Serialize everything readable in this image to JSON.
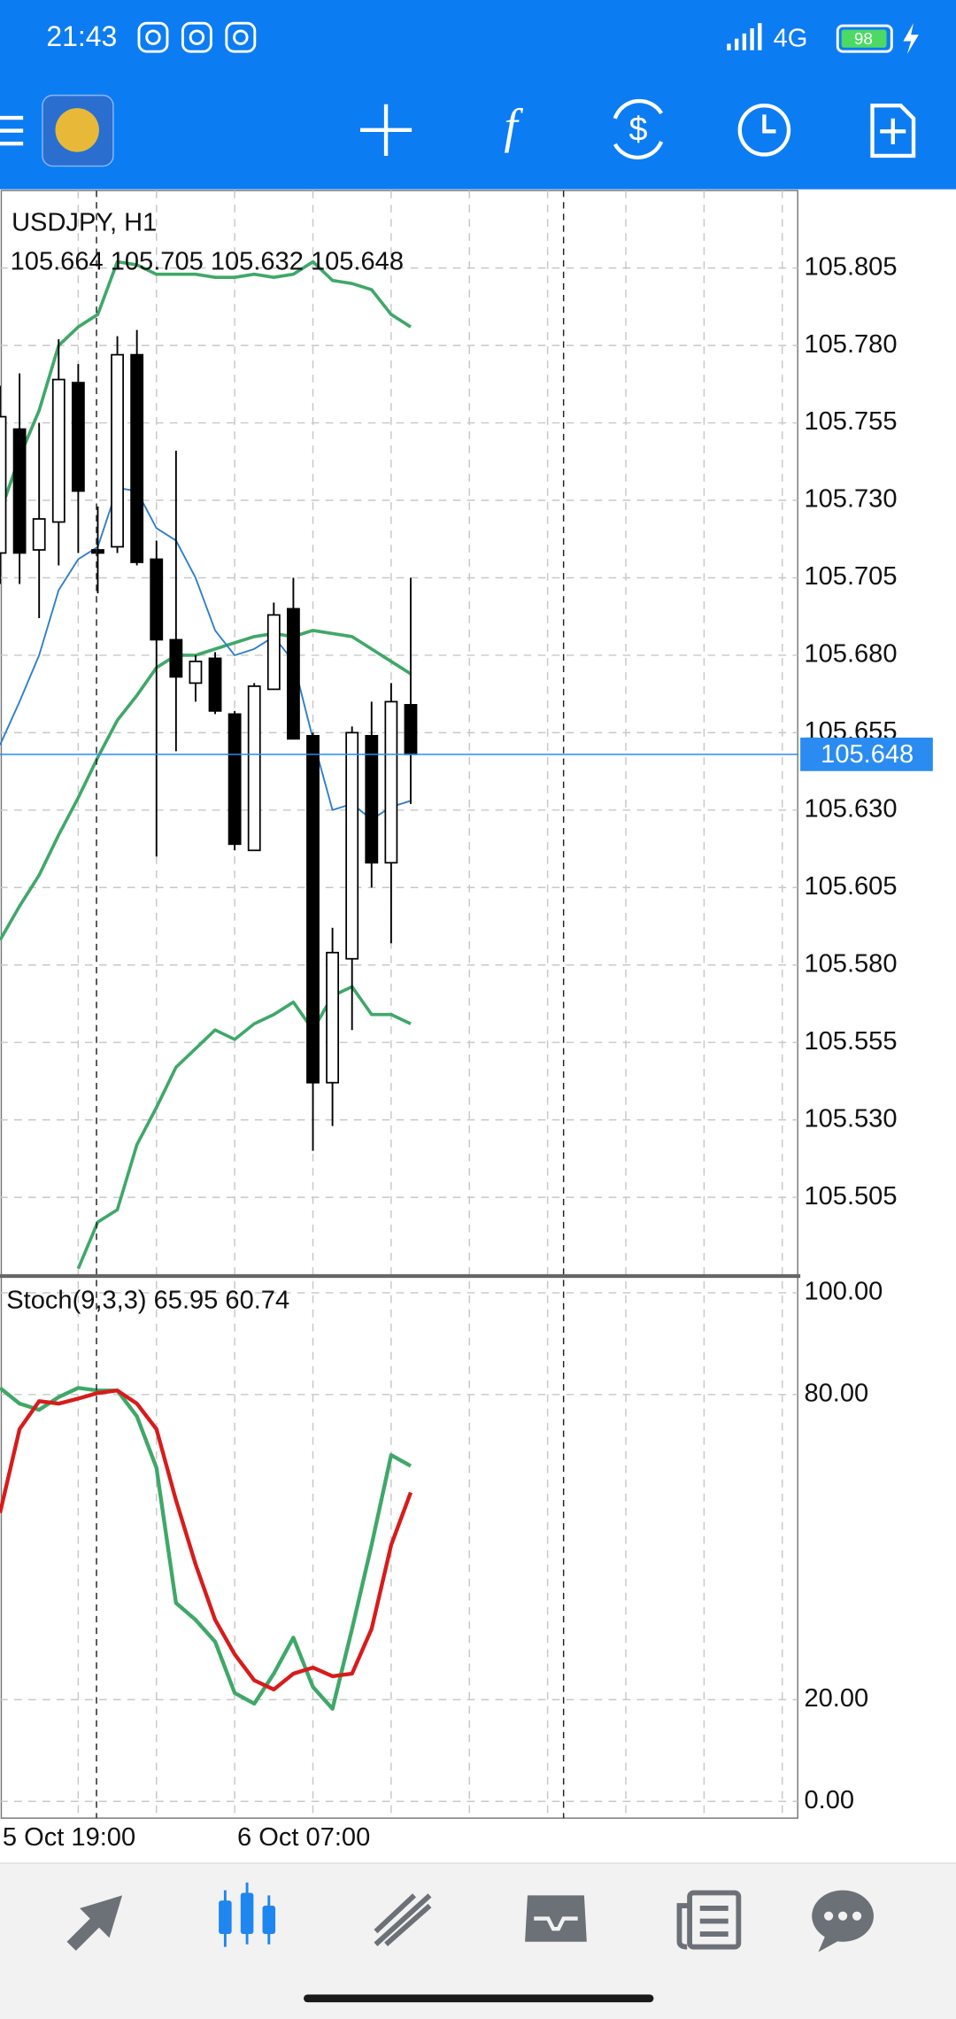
{
  "status_bar": {
    "time": "21:43",
    "network": "4G",
    "battery": "98"
  },
  "chart_data": [
    {
      "type": "candlestick",
      "title": "USDJPY, H1",
      "subtitle": "105.664 105.705 105.632 105.648",
      "categories": [
        "5 Oct 19:00",
        null,
        null,
        null,
        null,
        null,
        null,
        null,
        null,
        null,
        null,
        null,
        "6 Oct 07:00",
        null,
        null,
        null,
        null,
        null,
        null,
        null,
        null,
        null
      ],
      "open": [
        105.713,
        105.753,
        105.714,
        105.723,
        105.768,
        105.714,
        105.715,
        105.777,
        105.711,
        105.685,
        105.671,
        105.679,
        105.661,
        105.617,
        105.669,
        105.695,
        105.654,
        105.542,
        105.582,
        105.654,
        105.613,
        105.664
      ],
      "high": [
        105.767,
        105.771,
        105.755,
        105.782,
        105.774,
        105.728,
        105.783,
        105.785,
        105.717,
        105.746,
        105.68,
        105.681,
        105.662,
        105.671,
        105.697,
        105.705,
        105.655,
        105.592,
        105.657,
        105.665,
        105.671,
        105.705
      ],
      "low": [
        105.703,
        105.703,
        105.692,
        105.709,
        105.713,
        105.7,
        105.713,
        105.709,
        105.615,
        105.649,
        105.665,
        105.661,
        105.617,
        105.617,
        105.669,
        105.653,
        105.52,
        105.528,
        105.559,
        105.605,
        105.587,
        105.632
      ],
      "close": [
        105.757,
        105.713,
        105.724,
        105.769,
        105.733,
        105.713,
        105.777,
        105.71,
        105.685,
        105.673,
        105.678,
        105.662,
        105.619,
        105.67,
        105.693,
        105.653,
        105.542,
        105.584,
        105.655,
        105.613,
        105.665,
        105.648
      ],
      "up_color": "#ffffff",
      "down_color": "#000000",
      "lines": [
        {
          "color": "#3fa868",
          "values": [
            105.726,
            105.744,
            105.759,
            105.78,
            105.786,
            105.79,
            105.807,
            105.806,
            105.803,
            105.803,
            105.803,
            105.802,
            105.802,
            105.803,
            105.802,
            105.803,
            105.807,
            105.801,
            105.8,
            105.798,
            105.79,
            105.786
          ]
        },
        {
          "color": "#3fa868",
          "values": [
            105.588,
            105.599,
            105.609,
            105.622,
            105.634,
            105.647,
            105.659,
            105.667,
            105.676,
            105.68,
            105.68,
            105.682,
            105.684,
            105.686,
            105.687,
            105.686,
            105.688,
            105.687,
            105.686,
            105.682,
            105.678,
            105.674
          ]
        },
        {
          "color": "#3fa868",
          "values": [
            null,
            null,
            null,
            null,
            105.482,
            105.497,
            105.501,
            105.522,
            105.534,
            105.547,
            105.553,
            105.559,
            105.556,
            105.561,
            105.564,
            105.568,
            105.559,
            105.57,
            105.573,
            105.564,
            105.564,
            105.561
          ]
        },
        {
          "color": "#2f7fc8",
          "values": [
            105.651,
            105.665,
            105.68,
            105.701,
            105.711,
            105.715,
            105.734,
            105.733,
            105.721,
            105.717,
            105.705,
            105.688,
            105.68,
            105.682,
            105.686,
            105.678,
            105.653,
            105.63,
            105.632,
            105.627,
            105.631,
            105.633
          ]
        }
      ],
      "price_line": 105.648,
      "ylim": [
        105.48,
        105.83
      ],
      "yticks": [
        105.505,
        {
          "value": 105.53,
          "label": "105.530"
        },
        105.555,
        {
          "value": 105.58,
          "label": "105.580"
        },
        105.605,
        {
          "value": 105.63,
          "label": "105.630"
        },
        105.655,
        {
          "value": 105.68,
          "label": "105.680"
        },
        105.705,
        {
          "value": 105.73,
          "label": "105.730"
        },
        105.755,
        {
          "value": 105.78,
          "label": "105.780"
        },
        105.805
      ],
      "grid": true
    },
    {
      "type": "line",
      "title": "Stoch(9,3,3) 65.95 60.74",
      "series": [
        {
          "color": "#3fa868",
          "values": [
            81.3,
            78.2,
            77.0,
            79.5,
            81.3,
            80.8,
            80.8,
            75.7,
            65.6,
            39.0,
            35.7,
            31.4,
            21.3,
            19.2,
            25.1,
            32.2,
            22.5,
            18.2,
            33.9,
            50.4,
            68.1,
            65.95
          ]
        },
        {
          "color": "#d81b1b",
          "values": [
            56.7,
            73.2,
            78.7,
            78.2,
            79.2,
            80.3,
            80.8,
            78.2,
            73.2,
            59.2,
            46.6,
            35.7,
            28.9,
            23.8,
            22.0,
            25.1,
            26.3,
            24.6,
            25.1,
            33.9,
            50.4,
            60.74
          ]
        }
      ],
      "ylim": [
        -3.3,
        103.3
      ],
      "yticks": [
        {
          "value": 0,
          "label": "0.00"
        },
        {
          "value": 20,
          "label": "20.00"
        },
        {
          "value": 80,
          "label": "80.00"
        },
        {
          "value": 100,
          "label": "100.00"
        }
      ],
      "grid": true
    }
  ]
}
